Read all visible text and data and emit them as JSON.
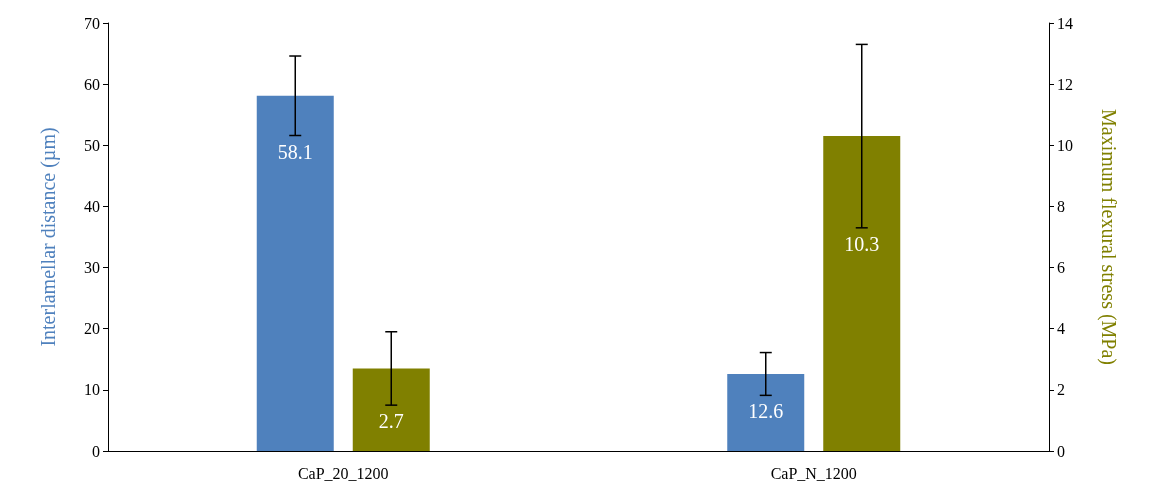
{
  "chart_data": {
    "type": "bar",
    "categories": [
      "CaP_20_1200",
      "CaP_N_1200"
    ],
    "ylabel": "Interlamellar distance (µm)",
    "y2label": "Maximum flexural stress (MPa)",
    "series": [
      {
        "color": "#4f81bd",
        "values": [
          58.1,
          12.6
        ],
        "errors": [
          6.5,
          3.5
        ]
      },
      {
        "color": "#808000",
        "values": [
          2.7,
          10.3
        ],
        "errors": [
          1.2,
          3.0
        ],
        "axis": "y2"
      }
    ],
    "ylim": [
      0,
      70
    ],
    "yticks": [
      0,
      10,
      20,
      30,
      40,
      50,
      60,
      70
    ],
    "y2lim": [
      0,
      14
    ],
    "y2ticks": [
      0,
      2,
      4,
      6,
      8,
      10,
      12,
      14
    ],
    "data_labels": true,
    "grid": false
  }
}
